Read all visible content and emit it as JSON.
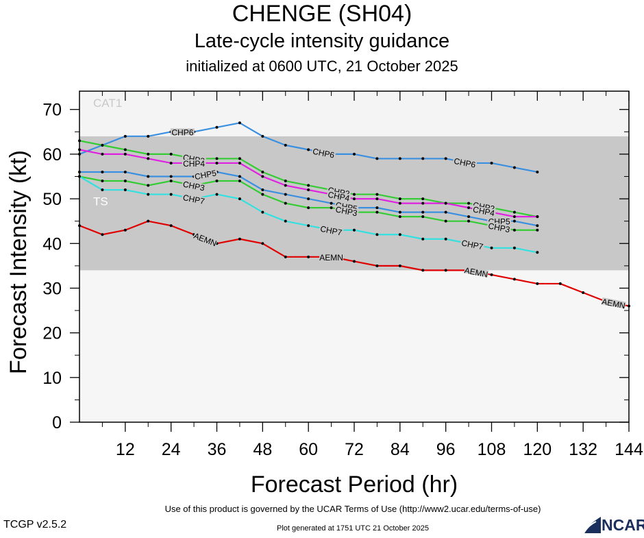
{
  "header": {
    "title": "CHENGE (SH04)",
    "subtitle": "Late-cycle intensity guidance",
    "init": "initialized at 0600 UTC, 21 October 2025"
  },
  "footer": {
    "terms": "Use of this product is governed by the UCAR Terms of Use (http://www2.ucar.edu/terms-of-use)",
    "version": "TCGP v2.5.2",
    "generated": "Plot generated at 1751 UTC   21 October 2025",
    "logo_text": "NCAR"
  },
  "chart_data": {
    "type": "line",
    "title": "CHENGE (SH04)",
    "subtitle": "Late-cycle intensity guidance",
    "xlabel": "Forecast Period (hr)",
    "ylabel": "Forecast Intensity (kt)",
    "xlim": [
      0,
      144
    ],
    "ylim": [
      0,
      70
    ],
    "xticks": [
      12,
      24,
      36,
      48,
      60,
      72,
      84,
      96,
      108,
      120,
      132,
      144
    ],
    "yticks": [
      0,
      10,
      20,
      30,
      40,
      50,
      60,
      70
    ],
    "grid": false,
    "bands": [
      {
        "label": "TS",
        "from": 34,
        "to": 64,
        "color": "#c8c8c8"
      },
      {
        "label": "CAT1",
        "from": 64,
        "to": 74,
        "color": "#f4f4f4"
      }
    ],
    "series": [
      {
        "name": "CHP6",
        "color": "#3a8fe0",
        "x": [
          0,
          6,
          12,
          18,
          24,
          30,
          36,
          42,
          48,
          54,
          60,
          66,
          72,
          78,
          84,
          90,
          96,
          102,
          108,
          114,
          120
        ],
        "y": [
          60,
          62,
          64,
          64,
          65,
          65,
          66,
          67,
          64,
          62,
          61,
          60,
          60,
          59,
          59,
          59,
          59,
          58,
          58,
          57,
          56
        ]
      },
      {
        "name": "CHP2",
        "color": "#33cc33",
        "x": [
          0,
          6,
          12,
          18,
          24,
          30,
          36,
          42,
          48,
          54,
          60,
          66,
          72,
          78,
          84,
          90,
          96,
          102,
          108,
          114,
          120
        ],
        "y": [
          63,
          62,
          61,
          60,
          60,
          59,
          59,
          59,
          56,
          54,
          53,
          52,
          51,
          51,
          50,
          50,
          49,
          49,
          48,
          47,
          46
        ]
      },
      {
        "name": "CHP4",
        "color": "#e020e0",
        "x": [
          0,
          6,
          12,
          18,
          24,
          30,
          36,
          42,
          48,
          54,
          60,
          66,
          72,
          78,
          84,
          90,
          96,
          102,
          108,
          114,
          120
        ],
        "y": [
          61,
          60,
          60,
          59,
          58,
          58,
          58,
          58,
          55,
          53,
          52,
          51,
          50,
          50,
          49,
          49,
          49,
          48,
          47,
          46,
          46
        ]
      },
      {
        "name": "CHP5",
        "color": "#3a8fe0",
        "x": [
          0,
          6,
          12,
          18,
          24,
          30,
          36,
          42,
          48,
          54,
          60,
          66,
          72,
          78,
          84,
          90,
          96,
          102,
          108,
          114,
          120
        ],
        "y": [
          56,
          56,
          56,
          55,
          55,
          55,
          56,
          55,
          52,
          51,
          50,
          49,
          48,
          48,
          47,
          47,
          47,
          46,
          45,
          45,
          44
        ]
      },
      {
        "name": "CHP3",
        "color": "#33cc33",
        "x": [
          0,
          6,
          12,
          18,
          24,
          30,
          36,
          42,
          48,
          54,
          60,
          66,
          72,
          78,
          84,
          90,
          96,
          102,
          108,
          114,
          120
        ],
        "y": [
          55,
          54,
          54,
          53,
          54,
          53,
          54,
          54,
          51,
          49,
          48,
          48,
          47,
          47,
          46,
          46,
          45,
          45,
          44,
          43,
          43
        ]
      },
      {
        "name": "CHP7",
        "color": "#33e0e0",
        "x": [
          0,
          6,
          12,
          18,
          24,
          30,
          36,
          42,
          48,
          54,
          60,
          66,
          72,
          78,
          84,
          90,
          96,
          102,
          108,
          114,
          120
        ],
        "y": [
          55,
          52,
          52,
          51,
          51,
          50,
          51,
          50,
          47,
          45,
          44,
          43,
          43,
          42,
          42,
          41,
          41,
          40,
          39,
          39,
          38
        ]
      },
      {
        "name": "AEMN",
        "color": "#e00000",
        "x": [
          0,
          6,
          12,
          18,
          24,
          30,
          36,
          42,
          48,
          54,
          60,
          66,
          72,
          78,
          84,
          90,
          96,
          102,
          108,
          114,
          120,
          126,
          132,
          138,
          144
        ],
        "y": [
          44,
          42,
          43,
          45,
          44,
          42,
          40,
          41,
          40,
          37,
          37,
          37,
          36,
          35,
          35,
          34,
          34,
          34,
          33,
          32,
          31,
          31,
          29,
          27,
          26
        ]
      }
    ],
    "line_labels": [
      {
        "series": 0,
        "at": [
          27,
          64,
          101
        ]
      },
      {
        "series": 1,
        "at": [
          30,
          68,
          106
        ]
      },
      {
        "series": 2,
        "at": [
          30,
          68,
          106
        ]
      },
      {
        "series": 3,
        "at": [
          33,
          70,
          110
        ]
      },
      {
        "series": 4,
        "at": [
          30,
          70,
          110
        ]
      },
      {
        "series": 5,
        "at": [
          30,
          66,
          103
        ]
      },
      {
        "series": 6,
        "at": [
          33,
          66,
          104,
          140
        ]
      }
    ]
  }
}
